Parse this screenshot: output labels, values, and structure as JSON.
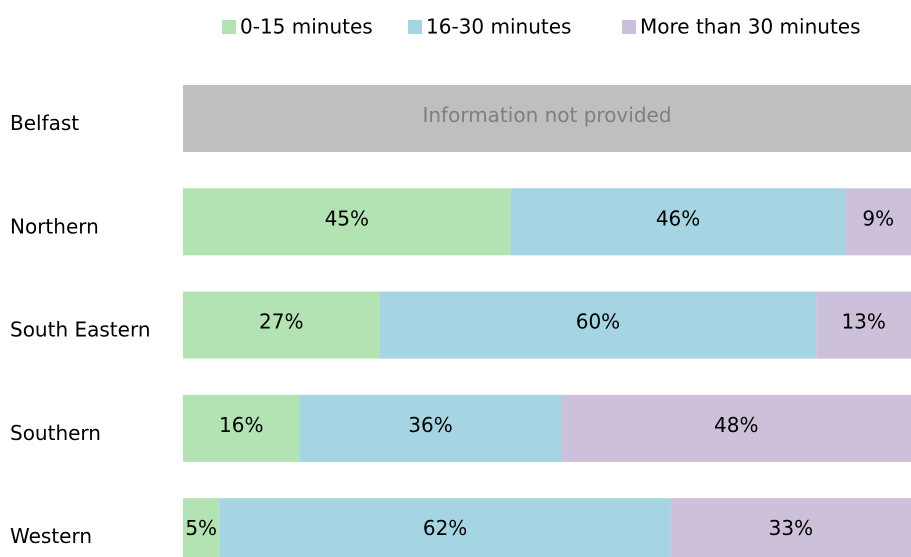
{
  "chart_data": {
    "type": "stacked-bar-horizontal",
    "categories": [
      "Belfast",
      "Northern",
      "South Eastern",
      "Southern",
      "Western"
    ],
    "series": [
      {
        "name": "0-15 minutes",
        "color": "#b3e2b3",
        "values": [
          null,
          45,
          27,
          16,
          5
        ],
        "value_labels": [
          null,
          "45%",
          "27%",
          "16%",
          "5%"
        ]
      },
      {
        "name": "16-30 minutes",
        "color": "#a5d5e2",
        "values": [
          null,
          46,
          60,
          36,
          62
        ],
        "value_labels": [
          null,
          "46%",
          "60%",
          "36%",
          "62%"
        ]
      },
      {
        "name": "More than 30 minutes",
        "color": "#ccc0da",
        "values": [
          null,
          9,
          13,
          48,
          33
        ],
        "value_labels": [
          null,
          "9%",
          "13%",
          "48%",
          "33%"
        ]
      }
    ],
    "annotation": "Information not provided",
    "annotation_color": "#bfbfbf",
    "xlim": [
      0,
      100
    ],
    "legend": "top"
  }
}
